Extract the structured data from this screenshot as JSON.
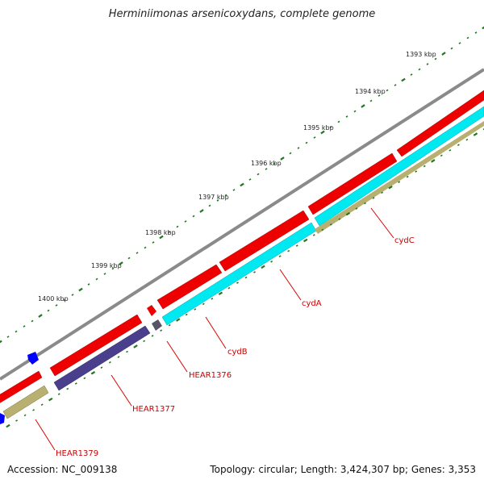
{
  "title": "Herminiimonas arsenicoxydans, complete genome",
  "accession_label": "Accession: NC_009138",
  "topology_label": "Topology: circular; Length: 3,424,307 bp; Genes: 3,353",
  "colors": {
    "backbone": "#8a8a8a",
    "cds_forward": "#ee0000",
    "cds_reverse": "#ee0000",
    "cydAB": "#00e8f0",
    "HEAR1377": "#4a3f8c",
    "HEAR1376": "#555566",
    "HEAR1379": "#b8b070",
    "tick": "#227722",
    "small_feature": "#0000ff"
  },
  "kbp_markers": [
    "1393 kbp",
    "1394 kbp",
    "1395 kbp",
    "1396 kbp",
    "1397 kbp",
    "1398 kbp",
    "1399 kbp",
    "1400 kbp"
  ],
  "gene_labels": [
    "cydC",
    "cydA",
    "cydB",
    "HEAR1376",
    "HEAR1377",
    "HEAR1379"
  ]
}
